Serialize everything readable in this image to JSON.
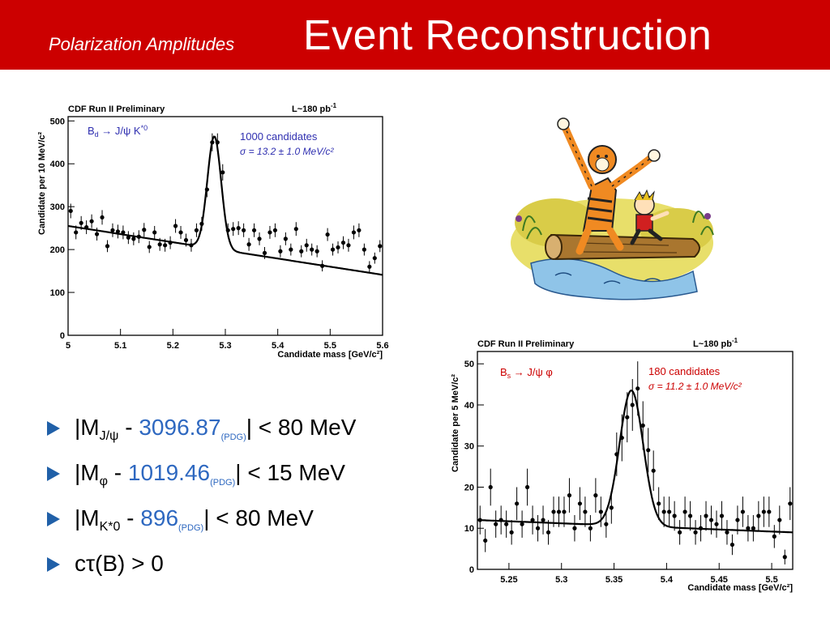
{
  "header": {
    "subtitle": "Polarization Amplitudes",
    "title": "Event Reconstruction",
    "color": "#cc0000"
  },
  "bullets": [
    {
      "pre": "|M",
      "sub": "J/ψ",
      "mid": " - ",
      "value": "3096.87",
      "pdg": "(PDG)",
      "post": "| < 80 MeV"
    },
    {
      "pre": "|M",
      "sub": "φ",
      "mid": " - ",
      "value": "1019.46",
      "pdg": "(PDG)",
      "post": "| < 15 MeV"
    },
    {
      "pre": "|M",
      "sub": "K*0",
      "mid": " - ",
      "value": "896",
      "pdg": "(PDG)",
      "post": "| < 80 MeV"
    },
    {
      "text": "cτ(B) > 0"
    }
  ],
  "chart_data": [
    {
      "type": "scatter",
      "title": "CDF Run II Preliminary",
      "luminosity": "L~180 pb",
      "luminosity_sup": "-1",
      "xlabel": "Candidate mass [GeV/c²]",
      "ylabel": "Candidate per 10 MeV/c²",
      "xlim": [
        5.0,
        5.6
      ],
      "ylim": [
        0,
        510
      ],
      "xticks": [
        5.0,
        5.1,
        5.2,
        5.3,
        5.4,
        5.5,
        5.6
      ],
      "xtick_labels": [
        "5",
        "5.1",
        "5.2",
        "5.3",
        "5.4",
        "5.5",
        "5.6"
      ],
      "yticks": [
        0,
        100,
        200,
        300,
        400,
        500
      ],
      "decay_label": "B",
      "decay_sub": "d",
      "decay_rest": " → J/ψ K",
      "decay_sup": "*0",
      "candidates_text": "1000 candidates",
      "sigma_text": "σ = 13.2 ± 1.0 MeV/c²",
      "text_color": "#2f2fb0",
      "x": [
        5.005,
        5.015,
        5.025,
        5.035,
        5.045,
        5.055,
        5.065,
        5.075,
        5.085,
        5.095,
        5.105,
        5.115,
        5.125,
        5.135,
        5.145,
        5.155,
        5.165,
        5.175,
        5.185,
        5.195,
        5.205,
        5.215,
        5.225,
        5.235,
        5.245,
        5.255,
        5.265,
        5.275,
        5.285,
        5.295,
        5.305,
        5.315,
        5.325,
        5.335,
        5.345,
        5.355,
        5.365,
        5.375,
        5.385,
        5.395,
        5.405,
        5.415,
        5.425,
        5.435,
        5.445,
        5.455,
        5.465,
        5.475,
        5.485,
        5.495,
        5.505,
        5.515,
        5.525,
        5.535,
        5.545,
        5.555,
        5.565,
        5.575,
        5.585,
        5.595
      ],
      "y": [
        290,
        240,
        262,
        252,
        266,
        236,
        275,
        208,
        245,
        242,
        240,
        228,
        225,
        230,
        246,
        206,
        240,
        212,
        210,
        216,
        255,
        240,
        222,
        210,
        245,
        260,
        340,
        450,
        450,
        380,
        245,
        248,
        250,
        245,
        212,
        245,
        225,
        192,
        240,
        245,
        196,
        225,
        200,
        248,
        196,
        210,
        200,
        196,
        162,
        235,
        200,
        205,
        216,
        210,
        240,
        245,
        200,
        160,
        180,
        208
      ],
      "errors": [
        17,
        16,
        16,
        16,
        16,
        15,
        17,
        14,
        16,
        16,
        16,
        15,
        15,
        15,
        16,
        14,
        15,
        15,
        15,
        15,
        16,
        15,
        15,
        15,
        16,
        16,
        18,
        21,
        21,
        19,
        16,
        16,
        16,
        16,
        15,
        16,
        15,
        14,
        15,
        16,
        14,
        15,
        14,
        16,
        14,
        15,
        14,
        14,
        13,
        15,
        14,
        14,
        15,
        15,
        16,
        16,
        14,
        13,
        13,
        14
      ],
      "fit": {
        "bg_at_5": 255,
        "bg_slope_per_GeV": -190,
        "peak_mean": 5.279,
        "peak_amp": 262,
        "peak_sigma": 0.0132
      }
    },
    {
      "type": "scatter",
      "title": "CDF Run II Preliminary",
      "luminosity": "L~180 pb",
      "luminosity_sup": "-1",
      "xlabel": "Candidate mass [GeV/c²]",
      "ylabel": "Candidate per 5 MeV/c²",
      "xlim": [
        5.22,
        5.52
      ],
      "ylim": [
        0,
        53
      ],
      "xticks": [
        5.25,
        5.3,
        5.35,
        5.4,
        5.45,
        5.5
      ],
      "xtick_labels": [
        "5.25",
        "5.3",
        "5.35",
        "5.4",
        "5.45",
        "5.5"
      ],
      "yticks": [
        0,
        10,
        20,
        30,
        40,
        50
      ],
      "decay_label": "B",
      "decay_sub": "s",
      "decay_rest": " → J/ψ φ",
      "decay_sup": "",
      "candidates_text": "180 candidates",
      "sigma_text": "σ = 11.2 ± 1.0 MeV/c²",
      "text_color": "#cc0000",
      "x": [
        5.2225,
        5.2275,
        5.2325,
        5.2375,
        5.2425,
        5.2475,
        5.2525,
        5.2575,
        5.2625,
        5.2675,
        5.2725,
        5.2775,
        5.2825,
        5.2875,
        5.2925,
        5.2975,
        5.3025,
        5.3075,
        5.3125,
        5.3175,
        5.3225,
        5.3275,
        5.3325,
        5.3375,
        5.3425,
        5.3475,
        5.3525,
        5.3575,
        5.3625,
        5.3675,
        5.3725,
        5.3775,
        5.3825,
        5.3875,
        5.3925,
        5.3975,
        5.4025,
        5.4075,
        5.4125,
        5.4175,
        5.4225,
        5.4275,
        5.4325,
        5.4375,
        5.4425,
        5.4475,
        5.4525,
        5.4575,
        5.4625,
        5.4675,
        5.4725,
        5.4775,
        5.4825,
        5.4875,
        5.4925,
        5.4975,
        5.5025,
        5.5075,
        5.5125,
        5.5175
      ],
      "y": [
        12,
        7,
        20,
        11,
        12,
        11,
        9,
        16,
        11,
        20,
        12,
        10,
        12,
        9,
        14,
        14,
        14,
        18,
        10,
        16,
        14,
        10,
        18,
        14,
        11,
        15,
        28,
        32,
        37,
        40,
        44,
        35,
        29,
        24,
        16,
        14,
        14,
        13,
        9,
        14,
        13,
        9,
        10,
        13,
        12,
        11,
        13,
        9,
        6,
        12,
        14,
        10,
        10,
        13,
        14,
        14,
        8,
        12,
        3,
        16
      ],
      "errors": [
        3.5,
        2.8,
        4.5,
        3.3,
        3.5,
        3.3,
        3,
        4,
        3.3,
        4.5,
        3.5,
        3.2,
        3.5,
        3,
        3.7,
        3.7,
        3.7,
        4.2,
        3.2,
        4,
        3.7,
        3.2,
        4.2,
        3.7,
        3.3,
        3.9,
        5.3,
        5.7,
        6.1,
        6.3,
        6.6,
        5.9,
        5.4,
        4.9,
        4,
        3.7,
        3.7,
        3.6,
        3,
        3.7,
        3.6,
        3,
        3.2,
        3.6,
        3.5,
        3.3,
        3.6,
        3,
        2.5,
        3.5,
        3.7,
        3.2,
        3.2,
        3.6,
        3.7,
        3.7,
        2.8,
        3.5,
        1.8,
        4
      ],
      "fit": {
        "bg_at_start": 12,
        "bg_slope_per_GeV": -10,
        "peak_mean": 5.3665,
        "peak_amp": 33,
        "peak_sigma": 0.0112
      }
    }
  ]
}
